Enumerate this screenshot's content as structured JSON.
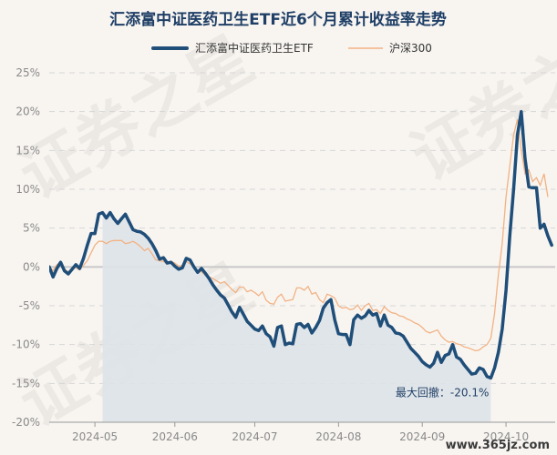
{
  "chart_data": {
    "type": "line",
    "title": "汇添富中证医药卫生ETF近6个月累计收益率走势",
    "ylim": [
      -20,
      25
    ],
    "yticks": [
      25,
      20,
      15,
      10,
      5,
      0,
      -5,
      -10,
      -15,
      -20
    ],
    "y_tick_labels": [
      "25%",
      "20%",
      "15%",
      "10%",
      "5%",
      "0%",
      "-5%",
      "-10%",
      "-15%",
      "-20%"
    ],
    "x_tick_labels": [
      "2024-05",
      "2024-06",
      "2024-07",
      "2024-08",
      "2024-09",
      "2024-10"
    ],
    "x_count": 132,
    "x_tick_index": [
      12,
      33,
      54,
      76,
      98,
      120
    ],
    "grid": true,
    "legend": "top-center",
    "annotation": "最大回撤：-20.1%",
    "series": [
      {
        "name": "汇添富中证医药卫生ETF",
        "color": "#1f4e79",
        "values": [
          0.0,
          -1.3,
          -0.2,
          0.6,
          -0.5,
          -0.9,
          -0.3,
          0.3,
          -0.2,
          1.1,
          2.8,
          4.3,
          4.3,
          6.8,
          7.0,
          6.3,
          7.0,
          6.2,
          5.6,
          6.2,
          6.8,
          5.8,
          4.8,
          4.6,
          4.5,
          4.2,
          3.7,
          3.0,
          2.1,
          1.0,
          1.2,
          0.5,
          0.6,
          0.1,
          -0.3,
          -0.1,
          1.1,
          0.9,
          0.0,
          -0.7,
          -0.2,
          -0.8,
          -1.5,
          -2.3,
          -3.0,
          -3.6,
          -4.0,
          -4.9,
          -5.8,
          -6.5,
          -5.2,
          -6.1,
          -7.0,
          -7.5,
          -8.0,
          -8.2,
          -7.6,
          -8.6,
          -9.0,
          -10.2,
          -7.8,
          -7.6,
          -10.0,
          -9.8,
          -9.9,
          -7.4,
          -7.3,
          -7.8,
          -7.4,
          -8.5,
          -7.8,
          -6.9,
          -5.3,
          -4.6,
          -4.2,
          -6.8,
          -8.6,
          -8.7,
          -8.7,
          -10.0,
          -6.8,
          -6.2,
          -6.6,
          -6.3,
          -5.6,
          -6.2,
          -6.0,
          -7.6,
          -6.2,
          -7.5,
          -7.8,
          -8.5,
          -8.6,
          -8.9,
          -9.7,
          -10.5,
          -11.0,
          -11.5,
          -12.2,
          -12.6,
          -12.9,
          -12.4,
          -11.0,
          -12.3,
          -11.4,
          -11.2,
          -10.0,
          -11.6,
          -11.9,
          -12.6,
          -13.2,
          -13.8,
          -13.7,
          -13.0,
          -13.2,
          -14.1,
          -14.3,
          -13.0,
          -11.0,
          -8.0,
          -3.0,
          4.0,
          10.0,
          17.0,
          20.0,
          14.0,
          10.3,
          10.2,
          10.2,
          5.0,
          5.5,
          4.0,
          2.8
        ]
      },
      {
        "name": "沪深300",
        "color": "#f2b283",
        "values": [
          0.0,
          -0.5,
          0.3,
          0.6,
          -0.3,
          -0.6,
          -0.2,
          -0.1,
          -0.4,
          0.2,
          0.8,
          1.8,
          2.8,
          3.3,
          3.3,
          3.0,
          3.3,
          3.4,
          3.4,
          3.4,
          3.0,
          3.1,
          3.3,
          3.0,
          2.6,
          2.1,
          2.4,
          1.7,
          0.9,
          0.8,
          0.7,
          0.4,
          0.7,
          0.5,
          0.1,
          0.2,
          0.7,
          0.4,
          0.0,
          -0.6,
          -0.6,
          -1.1,
          -1.3,
          -1.5,
          -1.8,
          -2.1,
          -1.9,
          -2.4,
          -2.9,
          -3.3,
          -2.6,
          -2.6,
          -3.2,
          -3.0,
          -3.3,
          -3.7,
          -3.2,
          -4.3,
          -4.7,
          -4.8,
          -3.9,
          -3.5,
          -4.4,
          -4.3,
          -4.2,
          -2.7,
          -2.7,
          -3.0,
          -2.5,
          -3.5,
          -3.3,
          -4.2,
          -4.6,
          -3.5,
          -3.7,
          -4.0,
          -5.0,
          -5.3,
          -5.2,
          -5.5,
          -5.4,
          -4.9,
          -5.6,
          -5.0,
          -4.7,
          -5.6,
          -5.5,
          -6.0,
          -5.1,
          -5.6,
          -5.9,
          -6.0,
          -6.3,
          -6.4,
          -6.7,
          -6.9,
          -7.2,
          -7.4,
          -7.8,
          -8.3,
          -8.5,
          -8.3,
          -8.1,
          -8.9,
          -9.4,
          -9.7,
          -9.6,
          -9.9,
          -10.0,
          -10.3,
          -10.4,
          -10.6,
          -10.8,
          -10.7,
          -10.3,
          -10.0,
          -9.2,
          -6.0,
          -1.0,
          3.0,
          9.0,
          13.0,
          17.0,
          19.0,
          15.0,
          12.0,
          12.5,
          11.0,
          11.5,
          10.5,
          12.0,
          9.0
        ]
      }
    ]
  },
  "watermark": {
    "text": "证券之星",
    "site": "www.365jz.com"
  }
}
